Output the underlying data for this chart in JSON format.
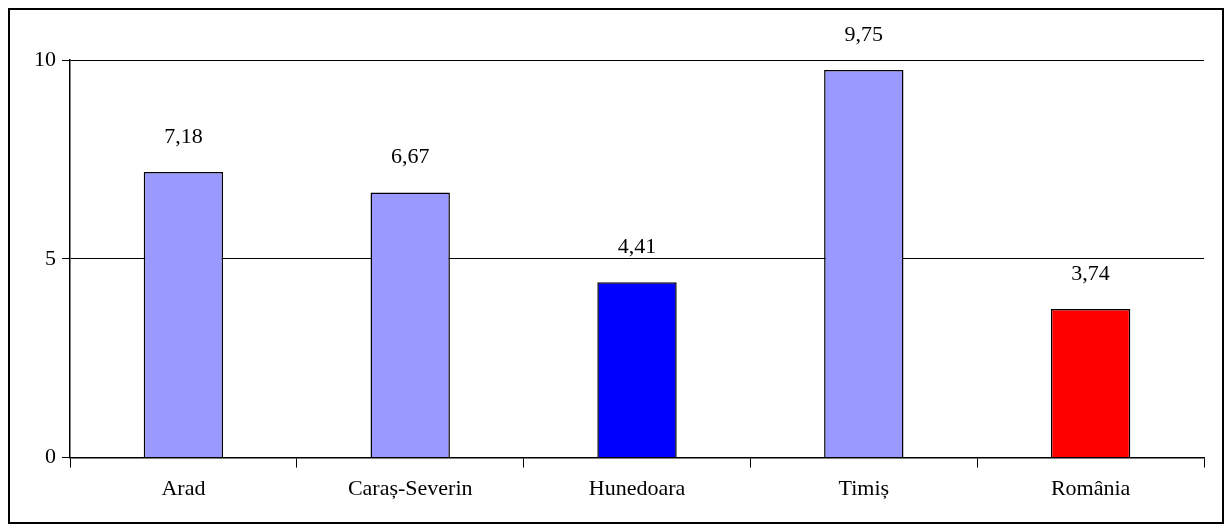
{
  "chart_data": {
    "type": "bar",
    "categories": [
      "Arad",
      "Caraș-Severin",
      "Hunedoara",
      "Timiș",
      "România"
    ],
    "values": [
      7.18,
      6.67,
      4.41,
      9.75,
      3.74
    ],
    "colors": [
      "#9999ff",
      "#9999ff",
      "#0000ff",
      "#9999ff",
      "#ff0000"
    ],
    "value_labels": [
      "7,18",
      "6,67",
      "4,41",
      "9,75",
      "3,74"
    ],
    "ylim": [
      0,
      10
    ],
    "yticks": [
      0,
      5,
      10
    ],
    "grid": "y",
    "legend": false
  }
}
